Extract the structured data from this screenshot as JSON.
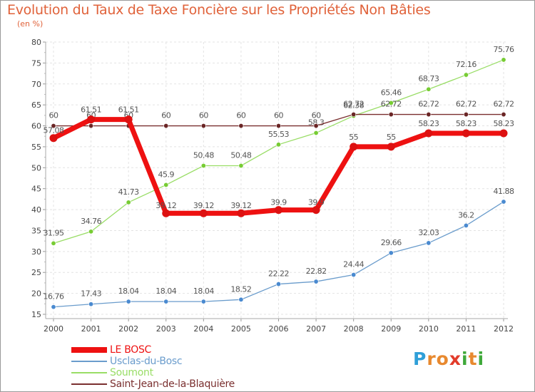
{
  "header": {
    "title": "Evolution du Taux de Taxe Foncière sur les Propriétés Non Bâties",
    "unit": "(en %)"
  },
  "logo": {
    "letters": [
      {
        "ch": "P",
        "color": "#2f9fd8"
      },
      {
        "ch": "r",
        "color": "#e8892f"
      },
      {
        "ch": "o",
        "color": "#e8892f"
      },
      {
        "ch": "x",
        "color": "#e23b2a"
      },
      {
        "ch": "i",
        "color": "#3fa93a"
      },
      {
        "ch": "t",
        "color": "#e8892f"
      },
      {
        "ch": "i",
        "color": "#3fa93a"
      }
    ]
  },
  "chart_data": {
    "type": "line",
    "title": "Evolution du Taux de Taxe Foncière sur les Propriétés Non Bâties",
    "ylabel": "(en %)",
    "xlabel": "",
    "x": [
      "2000",
      "2001",
      "2002",
      "2003",
      "2004",
      "2005",
      "2006",
      "2007",
      "2008",
      "2009",
      "2010",
      "2011",
      "2012"
    ],
    "ylim": [
      15,
      80
    ],
    "yticks": [
      "15",
      "20",
      "25",
      "30",
      "35",
      "40",
      "45",
      "50",
      "55",
      "60",
      "65",
      "70",
      "75",
      "80"
    ],
    "grid": true,
    "legend": "bottom-left",
    "series": [
      {
        "name": "LE BOSC",
        "color": "#ee1111",
        "width": 7,
        "marker_color": "#dd1111",
        "values": [
          57.08,
          61.51,
          61.51,
          39.12,
          39.12,
          39.12,
          39.9,
          39.9,
          55,
          55,
          58.23,
          58.23,
          58.23
        ],
        "labels": [
          "57.08",
          "61.51",
          "61.51",
          "39.12",
          "39.12",
          "39.12",
          "39.9",
          "39.9",
          "55",
          "55",
          "58.23",
          "58.23",
          "58.23"
        ],
        "label_dy": [
          -7,
          -10,
          -10,
          -7,
          -7,
          -7,
          -7,
          -7,
          -10,
          -10,
          -10,
          -10,
          -10
        ]
      },
      {
        "name": "Usclas-du-Bosc",
        "color": "#6a9ccc",
        "width": 1.3,
        "marker_color": "#4a8ad0",
        "values": [
          16.76,
          17.43,
          18.04,
          18.04,
          18.04,
          18.52,
          22.22,
          22.82,
          24.44,
          29.66,
          32.03,
          36.2,
          41.88
        ],
        "labels": [
          "16.76",
          "17.43",
          "18.04",
          "18.04",
          "18.04",
          "18.52",
          "22.22",
          "22.82",
          "24.44",
          "29.66",
          "32.03",
          "36.2",
          "41.88"
        ],
        "label_dy": [
          -11,
          -11,
          -11,
          -11,
          -11,
          -11,
          -11,
          -11,
          -11,
          -11,
          -11,
          -11,
          -11
        ]
      },
      {
        "name": "Soumont",
        "color": "#99dd66",
        "width": 1.3,
        "marker_color": "#77cc33",
        "values": [
          31.95,
          34.76,
          41.73,
          45.9,
          50.48,
          50.48,
          55.53,
          58.3,
          62.38,
          65.46,
          68.73,
          72.16,
          75.76
        ],
        "labels": [
          "31.95",
          "34.76",
          "41.73",
          "45.9",
          "50.48",
          "50.48",
          "55.53",
          "58.3",
          "62.38",
          "65.46",
          "68.73",
          "72.16",
          "75.76"
        ],
        "label_dy": [
          -11,
          -11,
          -11,
          -11,
          -11,
          -11,
          -11,
          -11,
          -11,
          -11,
          -11,
          -11,
          -11
        ]
      },
      {
        "name": "Saint-Jean-de-la-Blaquière",
        "color": "#7a2f2f",
        "width": 1.3,
        "marker_color": "#6a2525",
        "values": [
          60,
          60,
          60,
          60,
          60,
          60,
          60,
          60,
          62.72,
          62.72,
          62.72,
          62.72,
          62.72
        ],
        "labels": [
          "60",
          "60",
          "60",
          "60",
          "60",
          "60",
          "60",
          "60",
          "62.72",
          "62.72",
          "62.72",
          "62.72",
          "62.72"
        ],
        "label_dy": [
          -11,
          -11,
          -11,
          -11,
          -11,
          -11,
          -11,
          -11,
          -11,
          -11,
          -11,
          -11,
          -11
        ]
      }
    ]
  }
}
